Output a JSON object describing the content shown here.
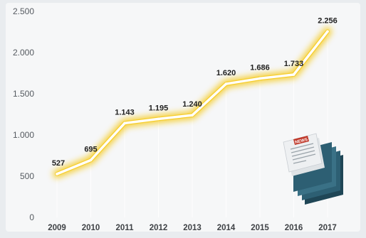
{
  "chart_data": {
    "type": "line",
    "title": "",
    "xlabel": "",
    "ylabel": "",
    "categories": [
      "2009",
      "2010",
      "2011",
      "2012",
      "2013",
      "2014",
      "2015",
      "2016",
      "2017"
    ],
    "values": [
      527,
      695,
      1143,
      1195,
      1240,
      1620,
      1686,
      1733,
      2256
    ],
    "value_labels": [
      "527",
      "695",
      "1.143",
      "1.195",
      "1.240",
      "1.620",
      "1.686",
      "1.733",
      "2.256"
    ],
    "y_ticks": [
      0,
      500,
      1000,
      1500,
      2000,
      2500
    ],
    "y_tick_labels": [
      "0",
      "500",
      "1.000",
      "1.500",
      "2.000",
      "2.500"
    ],
    "ylim": [
      0,
      2500
    ],
    "grid": false,
    "legend": "none",
    "colors": {
      "line": "#ffffff",
      "glow": "#f5c400",
      "label": "#1f1f1f"
    }
  },
  "decoration": {
    "icon": "newspaper-stack-icon",
    "badge_text": "NEWS",
    "colors": {
      "stack": "#2d5f73",
      "stack_dark": "#1f4656",
      "paper": "#eef0f2",
      "badge": "#c0392b"
    }
  }
}
